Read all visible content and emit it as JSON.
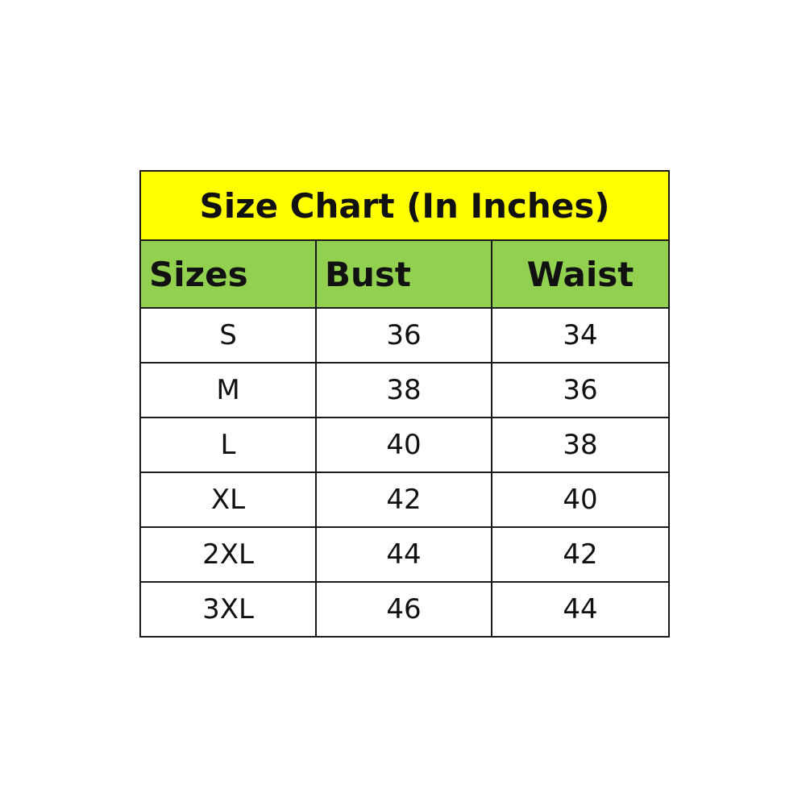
{
  "chart_data": {
    "type": "table",
    "title": "Size Chart (In Inches)",
    "columns": [
      "Sizes",
      "Bust",
      "Waist"
    ],
    "rows": [
      [
        "S",
        "36",
        "34"
      ],
      [
        "M",
        "38",
        "36"
      ],
      [
        "L",
        "40",
        "38"
      ],
      [
        "XL",
        "42",
        "40"
      ],
      [
        "2XL",
        "44",
        "42"
      ],
      [
        "3XL",
        "46",
        "44"
      ]
    ],
    "colors": {
      "title_bg": "#ffff00",
      "header_bg": "#92d050",
      "border": "#1a1a1a"
    }
  }
}
